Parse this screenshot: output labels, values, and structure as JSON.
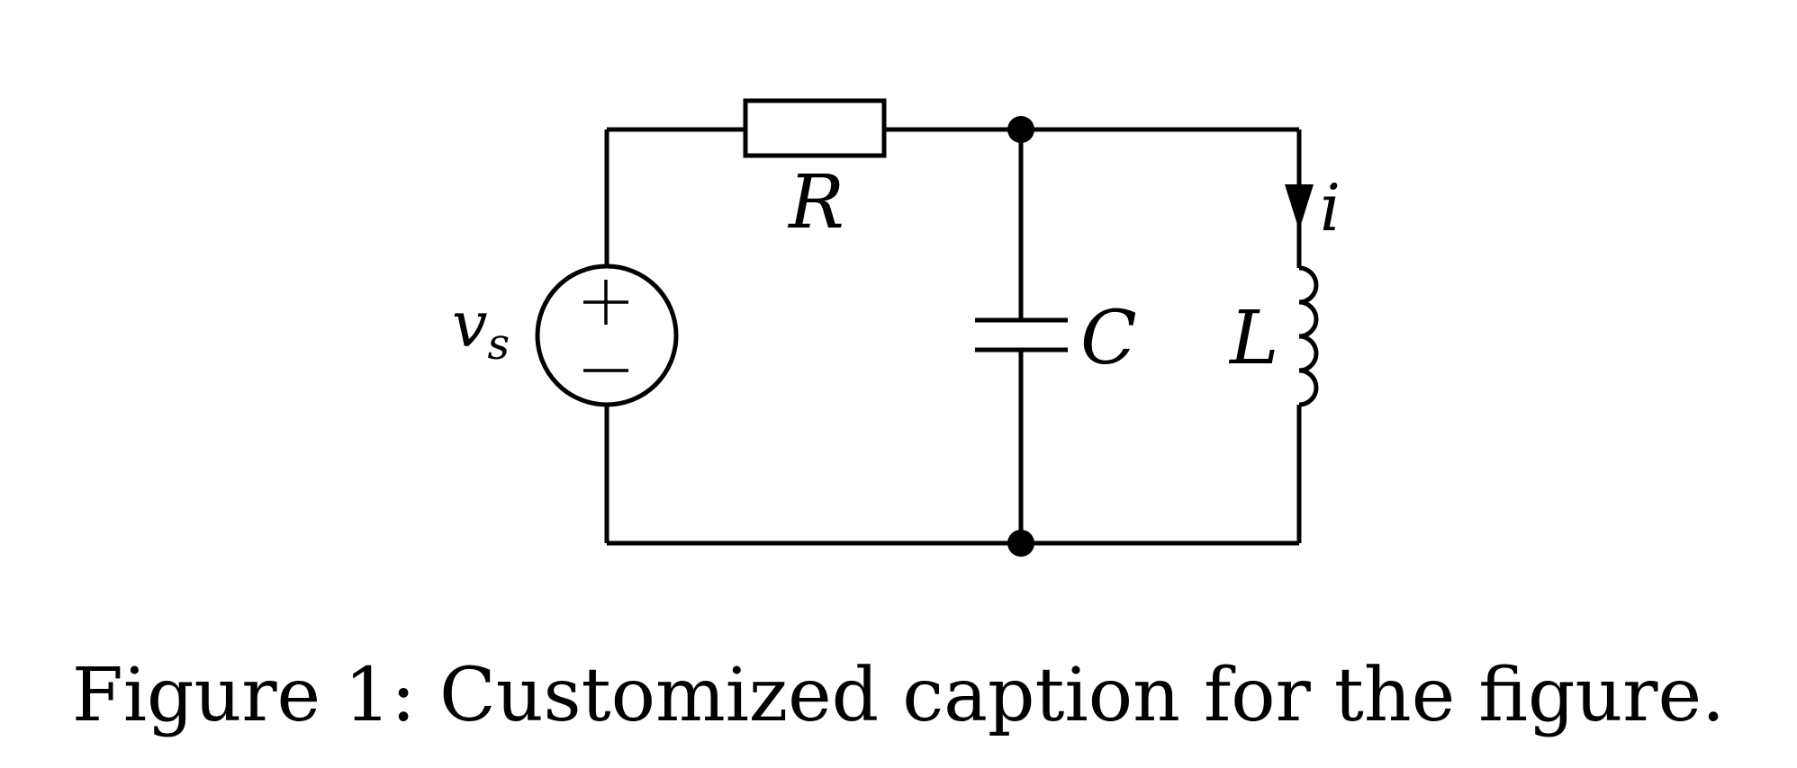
{
  "figure": {
    "caption": "Figure 1: Customized caption for the figure."
  },
  "circuit": {
    "components": {
      "source_label": "v",
      "source_subscript": "s",
      "resistor_label": "R",
      "capacitor_label": "C",
      "inductor_label": "L",
      "current_label": "i"
    },
    "colors": {
      "stroke": "#000000",
      "background": "#ffffff"
    }
  }
}
